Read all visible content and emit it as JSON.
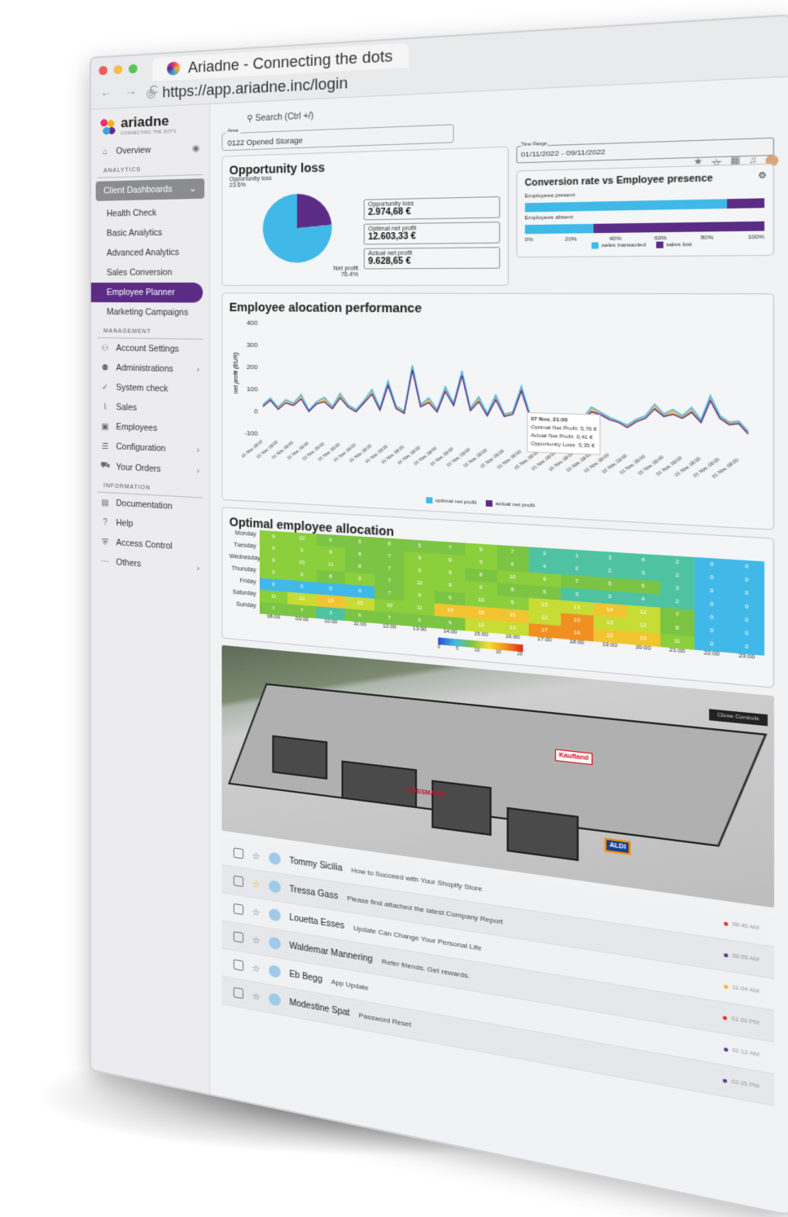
{
  "browser": {
    "tab_title": "Ariadne - Connecting the dots",
    "url": "https://app.ariadne.inc/login",
    "nav": "← → C"
  },
  "brand": {
    "name": "ariadne",
    "tagline": "CONNECTING THE DOTS"
  },
  "sidebar": {
    "overview": "Overview",
    "section_analytics": "ANALYTICS",
    "client_dashboards": "Client Dashboards",
    "analytics_items": [
      "Health Check",
      "Basic Analytics",
      "Advanced Analytics",
      "Sales Conversion",
      "Employee Planner",
      "Marketing Campaigns"
    ],
    "section_management": "MANAGEMENT",
    "management_items": [
      "Account Settings",
      "Administrations",
      "System check",
      "Sales",
      "Employees",
      "Configuration",
      "Your Orders"
    ],
    "section_information": "INFORMATION",
    "information_items": [
      "Documentation",
      "Help",
      "Access Control",
      "Others"
    ]
  },
  "search": {
    "label": "Search (Ctrl +/)"
  },
  "area": {
    "label": "Area",
    "value": "0122 Opened Storage"
  },
  "time_range": {
    "label": "Time Range",
    "value": "01/11/2022 - 09/11/2022"
  },
  "opportunity": {
    "title": "Opportunity loss",
    "slice_label": "Opportunity loss",
    "slice_value": "23.6%",
    "net_label": "Net profit",
    "net_value": "76.4%",
    "kpis": [
      {
        "label": "Opportunity loss",
        "value": "2.974,68 €"
      },
      {
        "label": "Optimal net profit",
        "value": "12.603,33 €"
      },
      {
        "label": "Actual net profit",
        "value": "9.628,65 €"
      }
    ]
  },
  "conversion": {
    "title": "Conversion rate vs Employee presence",
    "rows": [
      {
        "label": "Employees present",
        "fraction": 0.85
      },
      {
        "label": "Employees absent",
        "fraction": 0.3
      }
    ],
    "ticks": [
      "0%",
      "20%",
      "40%",
      "60%",
      "80%",
      "100%"
    ],
    "legend": [
      "sales transacted",
      "sales lost"
    ],
    "colors": {
      "transacted": "#41b9e8",
      "lost": "#5b2c86"
    }
  },
  "allocation": {
    "title": "Employee alocation performance",
    "ylabel": "net profit (EUR)",
    "yticks": [
      "400",
      "300",
      "200",
      "100",
      "0",
      "-100"
    ],
    "xtick": "01 Nov, 08:00",
    "tooltip": {
      "title": "07 Nov, 21:00",
      "lines": [
        "Optimal Net Profit: 5,76 €",
        "Actual Net Profit: 0,41 €",
        "Opportunity Loss: 5,35 €"
      ]
    },
    "legend": [
      "optimal net profit",
      "actual net profit"
    ]
  },
  "chart_data": {
    "type": "line",
    "title": "Employee alocation performance",
    "xlabel": "",
    "ylabel": "net profit (EUR)",
    "ylim": [
      -100,
      400
    ],
    "series": [
      {
        "name": "optimal net profit",
        "values": [
          30,
          60,
          20,
          55,
          40,
          80,
          10,
          50,
          70,
          30,
          90,
          40,
          20,
          60,
          110,
          30,
          150,
          40,
          20,
          220,
          50,
          80,
          30,
          130,
          60,
          200,
          40,
          90,
          20,
          100,
          20,
          30,
          140,
          20,
          25,
          10,
          0,
          15,
          5,
          10,
          60,
          40,
          20,
          5,
          -10,
          15,
          30,
          80,
          40,
          60,
          35,
          70,
          20,
          120,
          40,
          15,
          20,
          -20
        ]
      },
      {
        "name": "actual net profit",
        "values": [
          20,
          50,
          10,
          40,
          30,
          60,
          5,
          40,
          50,
          20,
          70,
          30,
          10,
          50,
          90,
          20,
          130,
          30,
          10,
          200,
          40,
          60,
          20,
          110,
          50,
          180,
          30,
          70,
          10,
          80,
          10,
          20,
          120,
          10,
          15,
          5,
          -5,
          5,
          0,
          5,
          40,
          30,
          10,
          0,
          -20,
          5,
          20,
          60,
          30,
          40,
          25,
          50,
          10,
          100,
          30,
          5,
          10,
          -30
        ]
      }
    ]
  },
  "heatmap": {
    "title": "Optimal employee allocation",
    "days": [
      "Monday",
      "Tuesday",
      "Wednesday",
      "Thursday",
      "Friday",
      "Saturday",
      "Sunday"
    ],
    "hours": [
      "08:00",
      "09:00",
      "10:00",
      "11:00",
      "12:00",
      "13:00",
      "14:00",
      "15:00",
      "16:00",
      "17:00",
      "18:00",
      "19:00",
      "20:00",
      "21:00",
      "22:00",
      "23:00"
    ],
    "values": [
      [
        9,
        10,
        6,
        5,
        8,
        5,
        7,
        9,
        7,
        3,
        1,
        3,
        4,
        2,
        0,
        0
      ],
      [
        9,
        9,
        9,
        8,
        7,
        9,
        9,
        9,
        6,
        4,
        2,
        2,
        3,
        2,
        0,
        0
      ],
      [
        9,
        10,
        11,
        8,
        7,
        9,
        9,
        8,
        10,
        9,
        7,
        5,
        6,
        3,
        0,
        0
      ],
      [
        9,
        9,
        8,
        9,
        7,
        10,
        9,
        9,
        8,
        5,
        3,
        3,
        4,
        2,
        0,
        0
      ],
      [
        0,
        0,
        0,
        0,
        7,
        9,
        6,
        10,
        9,
        13,
        13,
        14,
        12,
        7,
        0,
        0
      ],
      [
        11,
        12,
        15,
        13,
        10,
        11,
        14,
        15,
        15,
        12,
        16,
        13,
        12,
        8,
        0,
        0
      ],
      [
        7,
        7,
        3,
        6,
        7,
        6,
        6,
        12,
        13,
        17,
        16,
        15,
        15,
        11,
        0,
        0
      ]
    ],
    "scale_ticks": [
      "0",
      "5",
      "10",
      "15",
      "20"
    ]
  },
  "map": {
    "stores": [
      "Kaufland",
      "ROSSMANN",
      "ALDI"
    ],
    "control": "Close Controls"
  },
  "mail": [
    {
      "sender": "Tommy Sicilia",
      "subject": "How to Succeed with Your Shopify Store",
      "time": "09:40 AM",
      "starred": false,
      "dot": "#dd2b1c"
    },
    {
      "sender": "Tressa Gass",
      "subject": "Please find attached the latest Company Report",
      "time": "09:55 AM",
      "starred": true,
      "dot": "#5b2c86"
    },
    {
      "sender": "Louetta Esses",
      "subject": "Update Can Change Your Personal Life",
      "time": "11:04 AM",
      "starred": false,
      "dot": "#f6b21b"
    },
    {
      "sender": "Waldemar Mannering",
      "subject": "Refer friends. Get rewards.",
      "time": "01:02 PM",
      "starred": false,
      "dot": "#dd2b1c"
    },
    {
      "sender": "Eb Begg",
      "subject": "App Update",
      "time": "01:12 AM",
      "starred": false,
      "dot": "#5b2c86"
    },
    {
      "sender": "Modestine Spat",
      "subject": "Password Reset",
      "time": "02:25 PM",
      "starred": false,
      "dot": "#5b2c86"
    }
  ],
  "colors": {
    "accent": "#5b2c86",
    "cyan": "#41b9e8",
    "orange": "#f19020"
  }
}
